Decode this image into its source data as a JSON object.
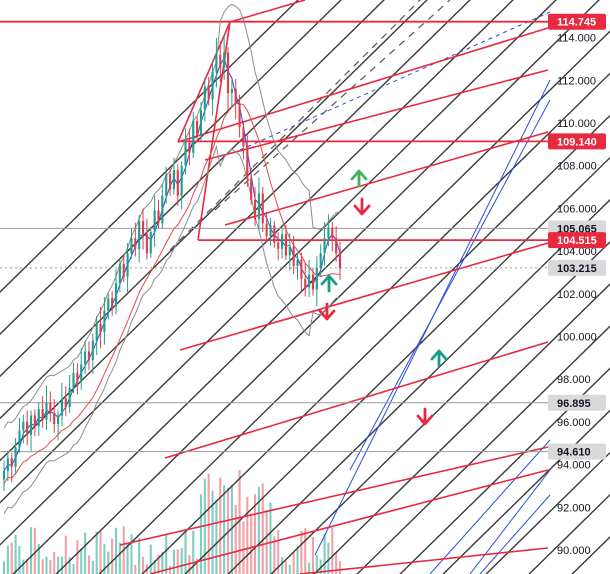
{
  "colors": {
    "background": "#ffffff",
    "fan_line": "#3a3a3a",
    "channel_red": "#e8293f",
    "channel_blue": "#2b4fd6",
    "dashed_gray": "#555555",
    "candle_up": "#1f9f8a",
    "candle_down": "#e23a4d",
    "volume_up": "#7fcfc0",
    "volume_down": "#f2a1a8",
    "bollinger": "#8c8c8c",
    "ma_red": "#e34a4a",
    "arrow_up_green": "#149e82",
    "arrow_up_lightgreen": "#3eb35a",
    "arrow_down_red": "#e8293f",
    "badge_red": "#e8293f",
    "badge_gray": "#d9d9dc",
    "badge_white_text": "#ffffff",
    "badge_dark_text": "#131722",
    "level_gray_line": "#9b9b9b"
  },
  "icons": [
    "arrow-up-icon",
    "arrow-down-icon"
  ],
  "chart_data": {
    "type": "candlestick",
    "title": "",
    "xlabel": "",
    "ylabel": "",
    "ylim": [
      89.0,
      116.0
    ],
    "grid": false,
    "y_ticks": [
      "90.000",
      "92.000",
      "94.000",
      "96.000",
      "98.000",
      "100.000",
      "102.000",
      "104.000",
      "106.000",
      "108.000",
      "110.000",
      "112.000",
      "114.000"
    ],
    "price_badges": [
      {
        "label": "114.745",
        "value": 114.745,
        "style": "red"
      },
      {
        "label": "109.140",
        "value": 109.14,
        "style": "red"
      },
      {
        "label": "105.065",
        "value": 105.065,
        "style": "gray"
      },
      {
        "label": "104.515",
        "value": 104.515,
        "style": "red"
      },
      {
        "label": "103.215",
        "value": 103.215,
        "style": "gray"
      },
      {
        "label": "96.895",
        "value": 96.895,
        "style": "gray"
      },
      {
        "label": "94.610",
        "value": 94.61,
        "style": "gray"
      }
    ],
    "horizontal_levels": [
      {
        "value": 114.745,
        "color": "red"
      },
      {
        "value": 109.14,
        "color": "red"
      },
      {
        "value": 105.065,
        "color": "gray"
      },
      {
        "value": 104.515,
        "color": "red"
      },
      {
        "value": 103.215,
        "color": "gray_dotted"
      },
      {
        "value": 96.895,
        "color": "gray"
      },
      {
        "value": 94.61,
        "color": "gray"
      }
    ],
    "close_prices": [
      93.7,
      94.3,
      93.9,
      94.8,
      95.6,
      96.0,
      95.4,
      96.3,
      95.8,
      96.6,
      96.1,
      96.9,
      96.4,
      95.9,
      96.3,
      97.1,
      96.7,
      97.6,
      98.3,
      97.9,
      98.7,
      99.3,
      98.9,
      99.8,
      100.6,
      100.2,
      101.2,
      101.8,
      101.4,
      102.5,
      103.4,
      102.8,
      103.9,
      104.6,
      104.1,
      105.4,
      104.8,
      103.9,
      104.9,
      105.9,
      105.3,
      106.6,
      107.6,
      106.9,
      107.8,
      106.6,
      108.0,
      109.1,
      108.6,
      110.1,
      109.4,
      110.6,
      111.7,
      111.1,
      112.4,
      113.2,
      112.6,
      113.3,
      111.4,
      111.6,
      110.9,
      109.8,
      108.9,
      107.4,
      106.4,
      105.5,
      106.7,
      105.3,
      104.7,
      105.2,
      104.4,
      104.1,
      104.8,
      103.8,
      104.2,
      103.3,
      103.6,
      102.7,
      102.3,
      102.9,
      102.2,
      103.2,
      103.9,
      104.6,
      105.1,
      104.6,
      103.9,
      103.2
    ]
  }
}
